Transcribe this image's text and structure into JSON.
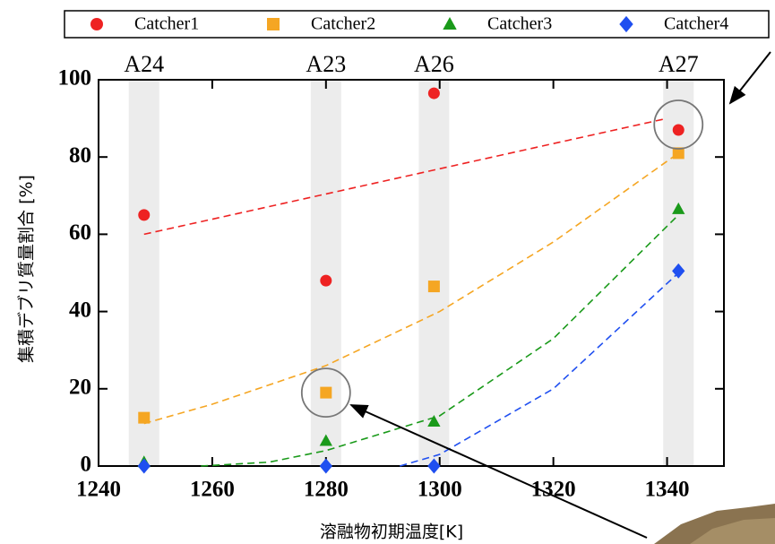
{
  "chart_data": {
    "type": "scatter",
    "x_label": "溶融物初期温度[K]",
    "y_label": "集積デブリ質量割合 [%]",
    "x": [
      1248,
      1280,
      1299,
      1342
    ],
    "series": [
      {
        "name": "Catcher1",
        "color": "#ee2222",
        "marker": "circle",
        "values": [
          65,
          48,
          96.5,
          87
        ]
      },
      {
        "name": "Catcher2",
        "color": "#f5a623",
        "marker": "square",
        "values": [
          12.5,
          19,
          46.5,
          81
        ]
      },
      {
        "name": "Catcher3",
        "color": "#1a9a1a",
        "marker": "triangle",
        "values": [
          1,
          6.5,
          11.5,
          66.5
        ]
      },
      {
        "name": "Catcher4",
        "color": "#1f4ff0",
        "marker": "diamond",
        "values": [
          0,
          0,
          0,
          50.5
        ]
      }
    ],
    "trendlines": [
      {
        "color": "#ee2222",
        "x": [
          1248,
          1340
        ],
        "values": [
          60,
          90
        ]
      },
      {
        "color": "#f5a623",
        "x": [
          1248,
          1260,
          1280,
          1300,
          1320,
          1342
        ],
        "values": [
          11,
          16,
          26,
          40,
          58,
          81
        ]
      },
      {
        "color": "#1a9a1a",
        "x": [
          1258,
          1270,
          1280,
          1300,
          1320,
          1342
        ],
        "values": [
          0,
          1,
          4,
          13,
          33,
          65
        ]
      },
      {
        "color": "#1f4ff0",
        "x": [
          1293,
          1300,
          1320,
          1342
        ],
        "values": [
          0,
          3,
          20,
          50
        ]
      }
    ],
    "annotations": [
      {
        "text": "A24",
        "x": 1248
      },
      {
        "text": "A23",
        "x": 1280
      },
      {
        "text": "A26",
        "x": 1299
      },
      {
        "text": "A27",
        "x": 1342
      }
    ],
    "xlim": [
      1240,
      1350
    ],
    "ylim": [
      0,
      100
    ],
    "xticks": [
      1240,
      1260,
      1280,
      1300,
      1320,
      1340
    ],
    "yticks": [
      0,
      20,
      40,
      60,
      80,
      100
    ]
  }
}
